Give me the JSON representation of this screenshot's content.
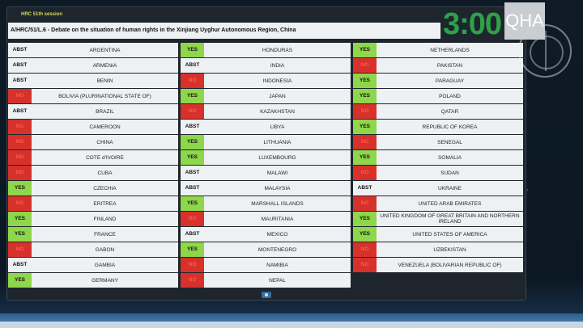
{
  "header": {
    "session": "HRC 51th session",
    "title": "A/HRC/51/L.6 -  Debate on the situation of human rights in the Xinjiang Uyghur Autonomous Region, China",
    "timer": "3:00",
    "logo": "QHA"
  },
  "colors": {
    "yes": "#8ed64a",
    "no": "#d7312c",
    "abst": "#eef1f3",
    "timer": "#2ca24a"
  },
  "columns": [
    [
      {
        "vote": "ABST",
        "country": "ARGENTINA"
      },
      {
        "vote": "ABST",
        "country": "ARMENIA"
      },
      {
        "vote": "ABST",
        "country": "BENIN"
      },
      {
        "vote": "NO",
        "country": "BOLIVIA (PLURINATIONAL STATE OF)"
      },
      {
        "vote": "ABST",
        "country": "BRAZIL"
      },
      {
        "vote": "NO",
        "country": "CAMEROON"
      },
      {
        "vote": "NO",
        "country": "CHINA"
      },
      {
        "vote": "NO",
        "country": "COTE d'IVOIRE"
      },
      {
        "vote": "NO",
        "country": "CUBA"
      },
      {
        "vote": "YES",
        "country": "CZECHIA"
      },
      {
        "vote": "NO",
        "country": "ERITREA"
      },
      {
        "vote": "YES",
        "country": "FINLAND"
      },
      {
        "vote": "YES",
        "country": "FRANCE"
      },
      {
        "vote": "NO",
        "country": "GABON"
      },
      {
        "vote": "ABST",
        "country": "GAMBIA"
      },
      {
        "vote": "YES",
        "country": "GERMANY"
      }
    ],
    [
      {
        "vote": "YES",
        "country": "HONDURAS"
      },
      {
        "vote": "ABST",
        "country": "INDIA"
      },
      {
        "vote": "NO",
        "country": "INDONESIA"
      },
      {
        "vote": "YES",
        "country": "JAPAN"
      },
      {
        "vote": "NO",
        "country": "KAZAKHSTAN"
      },
      {
        "vote": "ABST",
        "country": "LIBYA"
      },
      {
        "vote": "YES",
        "country": "LITHUANIA"
      },
      {
        "vote": "YES",
        "country": "LUXEMBOURG"
      },
      {
        "vote": "ABST",
        "country": "MALAWI"
      },
      {
        "vote": "ABST",
        "country": "MALAYSIA"
      },
      {
        "vote": "YES",
        "country": "MARSHALL ISLANDS"
      },
      {
        "vote": "NO",
        "country": "MAURITANIA"
      },
      {
        "vote": "ABST",
        "country": "MEXICO"
      },
      {
        "vote": "YES",
        "country": "MONTENEGRO"
      },
      {
        "vote": "NO",
        "country": "NAMIBIA"
      },
      {
        "vote": "NO",
        "country": "NEPAL"
      }
    ],
    [
      {
        "vote": "YES",
        "country": "NETHERLANDS"
      },
      {
        "vote": "NO",
        "country": "PAKISTAN"
      },
      {
        "vote": "YES",
        "country": "PARAGUAY"
      },
      {
        "vote": "YES",
        "country": "POLAND"
      },
      {
        "vote": "NO",
        "country": "QATAR"
      },
      {
        "vote": "YES",
        "country": "REPUBLIC OF KOREA"
      },
      {
        "vote": "NO",
        "country": "SENEGAL"
      },
      {
        "vote": "YES",
        "country": "SOMALIA"
      },
      {
        "vote": "NO",
        "country": "SUDAN"
      },
      {
        "vote": "ABST",
        "country": "UKRAINE"
      },
      {
        "vote": "NO",
        "country": "UNITED ARAB EMIRATES"
      },
      {
        "vote": "YES",
        "country": "UNITED KINGDOM OF GREAT BRITAIN AND NORTHERN IRELAND"
      },
      {
        "vote": "YES",
        "country": "UNITED STATES OF AMERICA"
      },
      {
        "vote": "NO",
        "country": "UZBEKISTAN"
      },
      {
        "vote": "NO",
        "country": "VENEZUELA (BOLIVARIAN REPUBLIC OF)"
      }
    ]
  ]
}
